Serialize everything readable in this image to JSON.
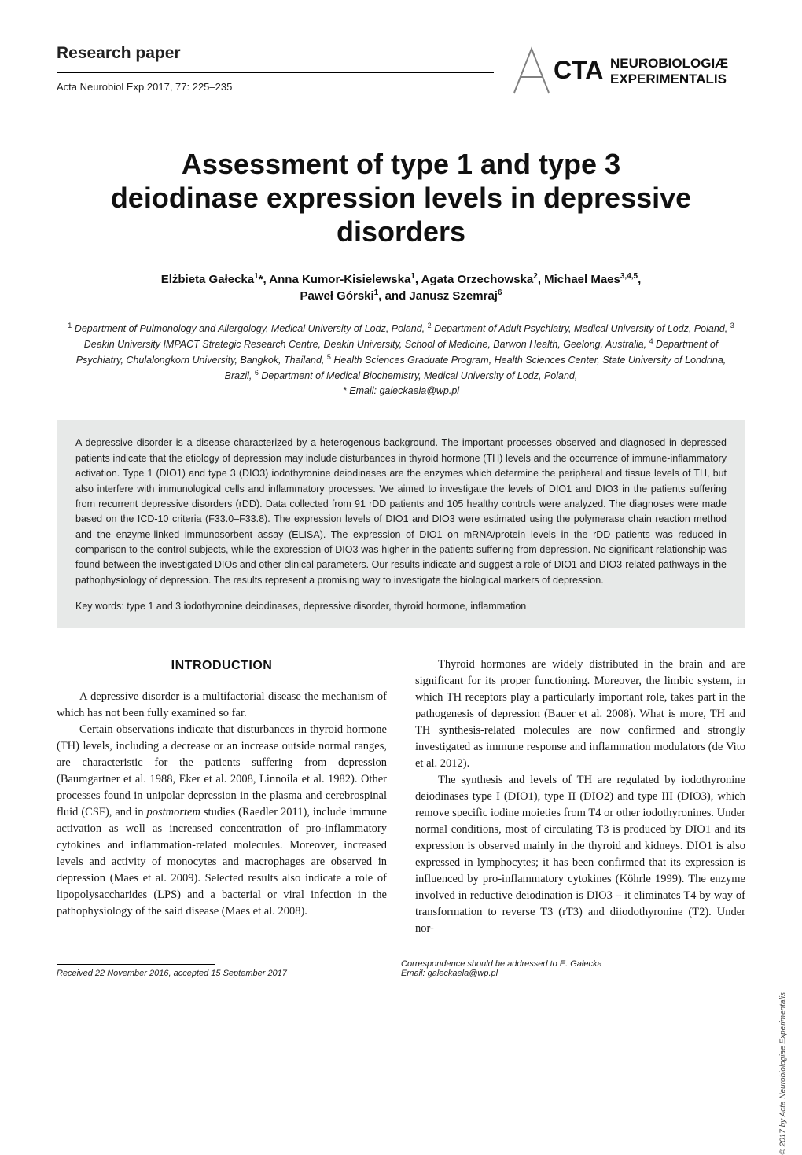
{
  "header": {
    "paper_type": "Research paper",
    "journal_ref": "Acta Neurobiol Exp 2017, 77: 225–235",
    "logo_text_top": "CTA",
    "logo_text_line1": "NEUROBIOLOGIÆ",
    "logo_text_line2": "EXPERIMENTALIS"
  },
  "title": "Assessment of type 1 and type 3 deiodinase expression levels in depressive disorders",
  "authors_html": "Elżbieta Gałecka<sup>1</sup>*, Anna Kumor-Kisielewska<sup>1</sup>, Agata Orzechowska<sup>2</sup>, Michael Maes<sup>3,4,5</sup>,<br>Paweł Górski<sup>1</sup>, and Janusz Szemraj<sup>6</sup>",
  "affiliations_html": "<sup>1</sup> Department of Pulmonology and Allergology, Medical University of Lodz, Poland, <sup>2</sup> Department of Adult Psychiatry, Medical University of Lodz, Poland, <sup>3</sup> Deakin University IMPACT Strategic Research Centre, Deakin University, School of Medicine, Barwon Health, Geelong, Australia, <sup>4</sup> Department of Psychiatry, Chulalongkorn University, Bangkok, Thailand, <sup>5</sup> Health Sciences Graduate Program, Health Sciences Center, State University of Londrina, Brazil, <sup>6</sup> Department of Medical Biochemistry, Medical University of Lodz, Poland,<br>* Email: galeckaela@wp.pl",
  "abstract": "A depressive disorder is a disease characterized by a heterogenous background. The important processes observed and diagnosed in depressed patients indicate that the etiology of depression may include disturbances in thyroid hormone (TH) levels and the occurrence of immune-inflammatory activation. Type 1 (DIO1) and type 3 (DIO3) iodothyronine deiodinases are the enzymes which determine the peripheral and tissue levels of TH, but also interfere with immunological cells and inflammatory processes. We aimed to investigate the levels of DIO1 and DIO3 in the patients suffering from recurrent depressive disorders (rDD). Data collected from 91 rDD patients and 105 healthy controls were analyzed. The diagnoses were made based on the ICD-10 criteria (F33.0–F33.8). The expression levels of DIO1 and DIO3 were estimated using the polymerase chain reaction method and the enzyme-linked immunosorbent assay (ELISA). The expression of DIO1 on mRNA/protein levels in the rDD patients was reduced in comparison to the control subjects, while the expression of DIO3 was higher in the patients suffering from depression. No significant relationship was found between the investigated DIOs and other clinical parameters. Our results indicate and suggest a role of DIO1 and DIO3-related pathways in the pathophysiology of depression. The results represent a promising way to investigate the biological markers of depression.",
  "keywords": "Key words: type 1 and 3 iodothyronine deiodinases, depressive disorder, thyroid hormone, inflammation",
  "section_heading": "INTRODUCTION",
  "col1": {
    "p1": "A depressive disorder is a multifactorial disease the mechanism of which has not been fully examined so far.",
    "p2_html": "Certain observations indicate that disturbances in thyroid hormone (TH) levels, including a decrease or an increase outside normal ranges, are characteristic for the patients suffering from depression (Baumgartner et al. 1988, Eker et al. 2008, Linnoila et al. 1982). Other processes found in unipolar depression in the plasma and cerebrospinal fluid (CSF), and in <em class=\"latin\">postmortem</em> studies (Raedler 2011), include immune activation as well as increased concentration of pro-inflammatory cytokines and inflammation-related molecules. Moreover, increased levels and activity of monocytes and macrophages are observed in depression (Maes et al. 2009). Selected results also indicate a role of lipopolysaccharides (LPS) and a bacterial or viral infection in the pathophysiology of the said disease (Maes et al. 2008)."
  },
  "col2": {
    "p1": "Thyroid hormones are widely distributed in the brain and are significant for its proper functioning. Moreover, the limbic system, in which TH receptors play a particularly important role, takes part in the pathogenesis of depression (Bauer et al. 2008). What is more, TH and TH synthesis-related molecules are now confirmed and strongly investigated as immune response and inflammation modulators (de Vito et al. 2012).",
    "p2": "The synthesis and levels of TH are regulated by iodothyronine deiodinases type I (DIO1), type II (DIO2) and type III (DIO3), which remove specific iodine moieties from T4 or other iodothyronines. Under normal conditions, most of circulating T3 is produced by DIO1 and its expression is observed mainly in the thyroid and kidneys. DIO1 is also expressed in lymphocytes; it has been confirmed that its expression is influenced by pro-inflammatory cytokines (Köhrle 1999). The enzyme involved in reductive deiodination is DIO3 – it eliminates T4 by way of transformation to reverse T3 (rT3) and diiodothyronine (T2). Under nor-"
  },
  "footer": {
    "received": "Received 22 November 2016, accepted 15 September 2017",
    "correspondence_l1": "Correspondence should be addressed to E. Gałecka",
    "correspondence_l2": "Email: galeckaela@wp.pl"
  },
  "side_copyright": "© 2017 by Acta Neurobiologiae Experimentalis",
  "colors": {
    "abstract_bg": "#e7e9e8",
    "text": "#1a1a1a",
    "rule": "#000000"
  }
}
